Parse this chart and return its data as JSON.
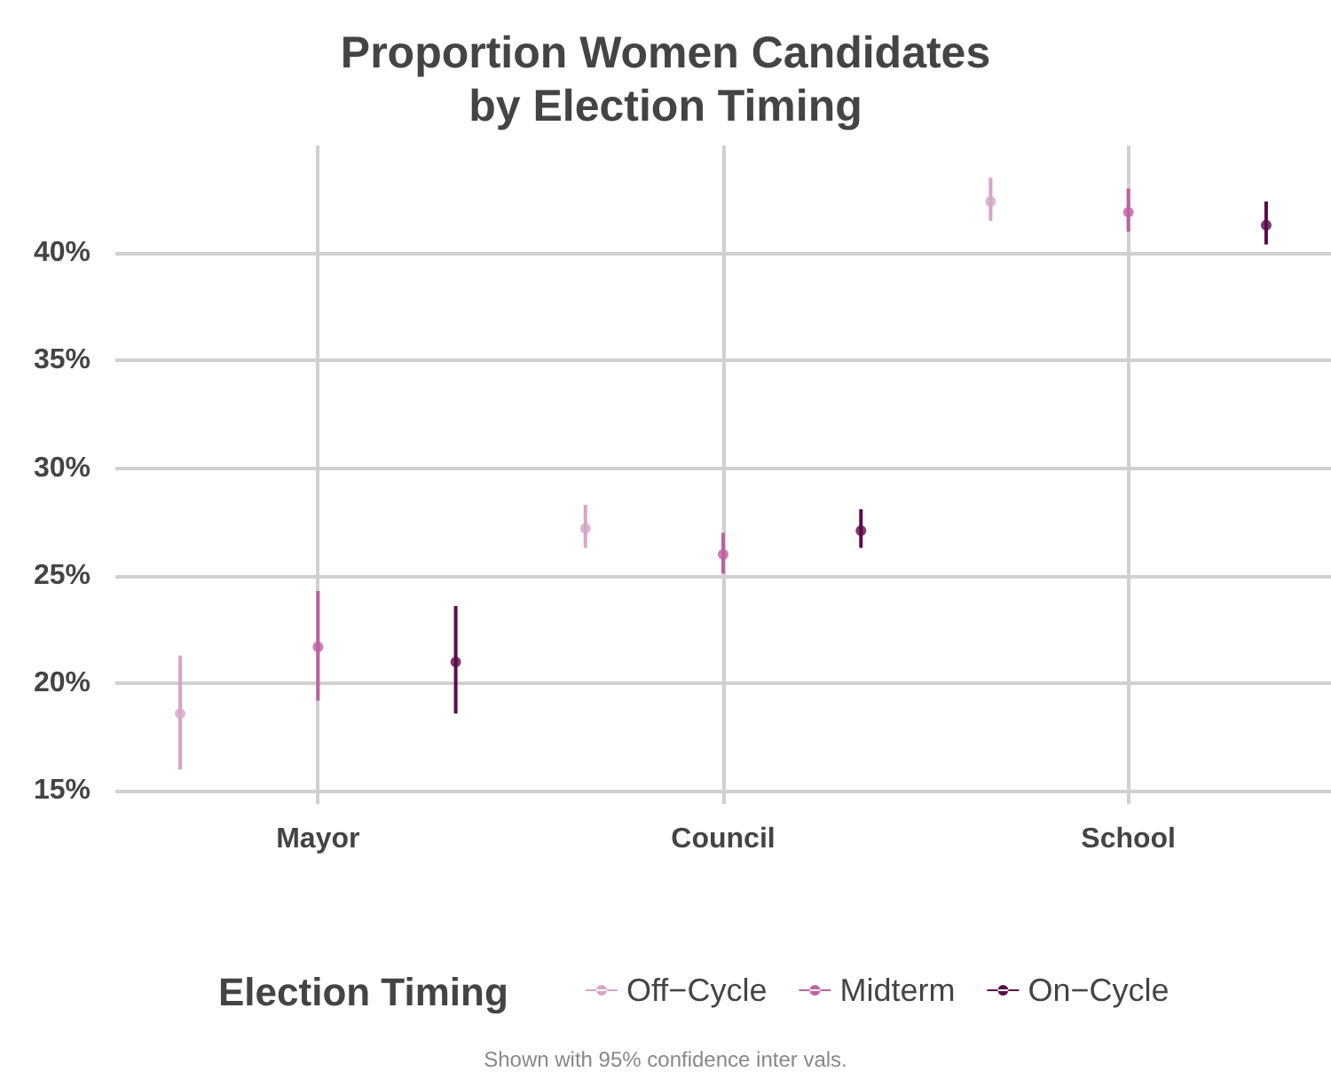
{
  "chart_data": {
    "type": "scatter",
    "title": "Proportion Women Candidates\nby Election Timing",
    "categories": [
      "Mayor",
      "Council",
      "School"
    ],
    "series": [
      {
        "name": "Off−Cycle",
        "color": "#d4a6c8",
        "values": [
          18.6,
          27.2,
          42.4
        ],
        "errors": [
          [
            16.0,
            21.3
          ],
          [
            26.3,
            28.3
          ],
          [
            41.5,
            43.5
          ]
        ]
      },
      {
        "name": "Midterm",
        "color": "#c0609f",
        "values": [
          21.7,
          26.0,
          41.9
        ],
        "errors": [
          [
            19.2,
            24.3
          ],
          [
            25.1,
            27.0
          ],
          [
            41.0,
            43.0
          ]
        ]
      },
      {
        "name": "On−Cycle",
        "color": "#5c0a4a",
        "values": [
          21.0,
          27.1,
          41.3
        ],
        "errors": [
          [
            18.6,
            23.6
          ],
          [
            26.3,
            28.1
          ],
          [
            40.4,
            42.4
          ]
        ]
      }
    ],
    "ylim": [
      14.4,
      45
    ],
    "yticks": [
      {
        "value": 15,
        "label": "15%"
      },
      {
        "value": 20,
        "label": "20%"
      },
      {
        "value": 25,
        "label": "25%"
      },
      {
        "value": 30,
        "label": "30%"
      },
      {
        "value": 35,
        "label": "35%"
      },
      {
        "value": 40,
        "label": "40%"
      }
    ],
    "grid": true,
    "legend": "bottom",
    "legend_title": "Election Timing",
    "marker": "circle",
    "annotations": [
      "Shown with 95% confidence inter vals."
    ]
  }
}
